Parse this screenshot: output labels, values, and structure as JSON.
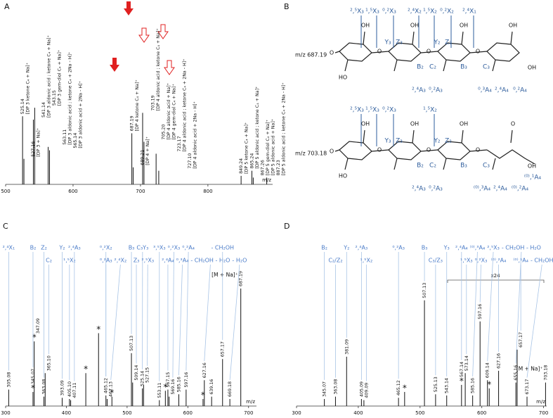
{
  "chart_data": [
    {
      "panel": "A",
      "type": "stem",
      "xlabel": "m/z",
      "xlim": [
        500,
        896
      ],
      "xticks": [
        500,
        600,
        700,
        800
      ],
      "ylim": [
        0,
        100
      ],
      "color": "#111111",
      "x": [
        525.14,
        527.16,
        541.14,
        543.15,
        563.11,
        565.14,
        687.19,
        689.21,
        703.19,
        705.2,
        723.17,
        727.1,
        849.24,
        865.24,
        867.26,
        887.23
      ],
      "x_labels": [
        "525.14",
        "527.16",
        "541.14",
        "543.15",
        "563.11",
        "565.14",
        "687.19",
        "689.21",
        "703.19",
        "705.20",
        "723.17",
        "727.10",
        "849.24",
        "865.24",
        "867.26",
        "887.23"
      ],
      "values": [
        40,
        15,
        38,
        45,
        22,
        20,
        30,
        10,
        42,
        25,
        18,
        8,
        5,
        8,
        4,
        4
      ],
      "ion_labels": [
        [
          "[DP 3 ketone C₄ + Na]⁺"
        ],
        [
          "[DP 3 + Na]⁺"
        ],
        [
          "[DP 3 aldonic acid ; ketone C₄ + Na]⁺"
        ],
        [
          "[DP 3 gem-diol C₄ + Na]⁺"
        ],
        [
          "[DP 3 aldonic acid ; ketone C₄ + 2Na - H]⁺"
        ],
        [
          "[DP 3 aldonic acid + 2Na - H]⁺"
        ],
        [
          "[DP 4 ketone C₄ + Na]⁺"
        ],
        [
          "[DP 4 + Na]⁺"
        ],
        [
          "[DP 4 aldonic acid ; ketone C₄ + Na]⁺"
        ],
        [
          "[DP 4 aldonic acid + Na]⁺",
          "[DP 4 gem-diol C₄ + Na]⁺"
        ],
        [
          "[DP 4 aldonic acid ; ketone C₄ + 2Na - H]⁺"
        ],
        [
          "[DP 4 aldonic acid + 2Na - H]⁺"
        ],
        [
          "[DP 5 ketone C₄ + Na]⁺"
        ],
        [
          "[DP 5 aldonic acid ; ketone C₄ + Na]⁺"
        ],
        [
          "[DP 5 gem-diol C₄ + Na]⁺",
          "[DP 5 aldonic acid + Na]⁺"
        ],
        [
          "[DP 5 aldonic acid ; ketone C₄ + 2Na - H]⁺"
        ]
      ]
    },
    {
      "panel": "C",
      "type": "stem",
      "xlabel": "m/z",
      "xlim": [
        300,
        713
      ],
      "xticks": [
        300,
        400,
        500,
        600,
        700
      ],
      "ylim": [
        0,
        100
      ],
      "color": "#111111",
      "x": [
        305.08,
        345.07,
        347.09,
        363.08,
        365.1,
        393.09,
        405.1,
        407.11,
        432,
        453,
        465.12,
        467.13,
        475,
        507.13,
        509.14,
        525.14,
        527.15,
        553.11,
        563,
        567.15,
        569.16,
        585.16,
        597.16,
        625,
        627.16,
        639.16,
        657.17,
        669.18,
        687.19
      ],
      "x_labels": [
        "305.08",
        "345.07",
        "347.09",
        "363.08",
        "365.10",
        "393.09",
        "405.10",
        "407.11",
        null,
        null,
        "465.12",
        "467.13",
        null,
        "507.13",
        "509.14",
        "525.14",
        "527.15",
        "553.11",
        null,
        "567.15",
        "569.16",
        "585.16",
        "597.16",
        null,
        "627.16",
        "639.16",
        "657.17",
        "669.18",
        "687.19"
      ],
      "values": [
        14,
        12,
        55,
        8,
        28,
        7,
        6,
        5,
        28,
        62,
        9,
        6,
        8,
        45,
        20,
        15,
        18,
        5,
        13,
        14,
        8,
        10,
        14,
        6,
        22,
        8,
        40,
        6,
        100
      ],
      "stars": [
        null,
        "*",
        "*",
        null,
        null,
        null,
        null,
        null,
        "*",
        "*",
        null,
        null,
        "*",
        null,
        null,
        null,
        null,
        null,
        "*",
        null,
        null,
        null,
        null,
        "*",
        null,
        null,
        null,
        null,
        null
      ],
      "fragments": [
        [
          "²,⁴X₁"
        ],
        [
          "B₂"
        ],
        null,
        [
          "Z₂"
        ],
        [
          "C₂"
        ],
        [
          "Y₂"
        ],
        [
          "¹,⁵X₂"
        ],
        [
          "²,⁴A₃"
        ],
        null,
        null,
        [
          "⁰,²X₂",
          "⁰,²A₃"
        ],
        [
          "²,⁴X₂"
        ],
        null,
        [
          "B₃"
        ],
        [
          "Z₃"
        ],
        [
          "C₃Y₃"
        ],
        [
          "²,⁵X₃"
        ],
        [
          "³,⁵X₃"
        ],
        null,
        [
          "²,⁴A₄"
        ],
        [
          "⁰,²X₃"
        ],
        [
          "⁰,³A₄"
        ],
        [
          "⁰,²A₄"
        ],
        null,
        [
          "- CH₂OH - H₂O"
        ],
        null,
        [
          "- CH₂OH"
        ],
        [
          "- H₂O"
        ],
        null
      ],
      "ion_labels": [
        null,
        null,
        null,
        null,
        null,
        null,
        null,
        null,
        null,
        null,
        null,
        null,
        null,
        null,
        null,
        null,
        null,
        null,
        null,
        null,
        null,
        null,
        null,
        null,
        null,
        null,
        null,
        null,
        [
          "[M + Na]⁺"
        ]
      ]
    },
    {
      "panel": "D",
      "type": "stem",
      "xlabel": "m/z",
      "xlim": [
        300,
        705
      ],
      "xticks": [
        300,
        400,
        500,
        600,
        700
      ],
      "ylim": [
        0,
        100
      ],
      "color": "#111111",
      "zoom_label": "x24",
      "x": [
        345.07,
        363.08,
        381.09,
        405.09,
        409.09,
        465.12,
        475,
        507.13,
        525.13,
        543.14,
        567.14,
        573.14,
        585.16,
        597.16,
        609.14,
        612,
        627.16,
        655.16,
        657.17,
        673.17,
        703.18
      ],
      "x_labels": [
        "345.07",
        "363.08",
        "381.09",
        "405.09",
        "409.09",
        "465.12",
        null,
        "507.13",
        "525.13",
        "543.14",
        "567.14",
        "573.14",
        "585.16",
        "597.16",
        "609.14",
        null,
        "627.16",
        "655.16",
        "657.17",
        "673.17",
        "703.18"
      ],
      "values": [
        6,
        8,
        42,
        6,
        5,
        7,
        12,
        90,
        10,
        9,
        18,
        28,
        9,
        72,
        22,
        15,
        30,
        20,
        48,
        8,
        20
      ],
      "stars": [
        null,
        null,
        null,
        null,
        null,
        null,
        "*",
        null,
        null,
        null,
        "*",
        null,
        null,
        null,
        null,
        "*",
        null,
        null,
        null,
        null,
        null
      ],
      "fragments": [
        [
          "B₂"
        ],
        [
          "C₂/Z₂"
        ],
        [
          "Y₂"
        ],
        [
          "²,⁴A₃"
        ],
        [
          "¹,⁵X₂"
        ],
        [
          "⁰,²A₃"
        ],
        null,
        [
          "B₃"
        ],
        [
          "C₃/Z₃"
        ],
        [
          "Y₃"
        ],
        [
          "²,⁴A₄"
        ],
        [
          "¹,⁵X₃"
        ],
        [
          "⁽⁰⁾,³A₄"
        ],
        [
          "⁰,²X₃"
        ],
        [
          "²,⁵X₃"
        ],
        null,
        [
          "⁽⁰⁾,²A₄"
        ],
        [
          "- CH₂OH - H₂O"
        ],
        [
          "⁽⁰⁾,¹A₄"
        ],
        [
          "- CH₂OH"
        ],
        null
      ],
      "ion_labels": [
        null,
        null,
        null,
        null,
        null,
        null,
        null,
        null,
        null,
        null,
        null,
        null,
        null,
        null,
        null,
        null,
        null,
        null,
        null,
        null,
        [
          "[M + Na]⁺"
        ]
      ]
    }
  ],
  "diagram": {
    "panel": "B",
    "structures": [
      {
        "label": "m/z 687.19",
        "fragments": [
          "²,⁵X₃",
          "¹,⁵X₃",
          "⁰,²X₃",
          "²,⁴X₂",
          "¹,⁵X₂",
          "⁰,²X₂",
          "²,⁴X₁",
          "Y₃",
          "Z₃",
          "Y₂",
          "Z₂",
          "B₂",
          "C₂",
          "B₃",
          "C₃",
          "²,⁴A₃",
          "⁰,²A₃",
          "⁰,³A₄",
          "²,⁴A₄",
          "⁰,²A₄"
        ],
        "atoms": [
          "O",
          "HO",
          "O",
          "O",
          "O",
          "OH",
          "OH",
          "OH",
          "OH",
          "OH"
        ]
      },
      {
        "label": "m/z 703.18",
        "fragments": [
          "²,⁵X₃",
          "¹,⁵X₃",
          "⁰,²X₃",
          "¹,⁵X₂",
          "Y₃",
          "Z₃",
          "Y₂",
          "Z₂",
          "B₂",
          "C₂",
          "B₃",
          "C₃",
          "⁽⁰⁾,¹A₄",
          "²,⁴A₃",
          "⁰,²A₃",
          "⁽⁰⁾,³A₄",
          "²,⁴A₄",
          "⁽⁰⁾,²A₄"
        ],
        "atoms": [
          "O",
          "HO",
          "O",
          "O",
          "O",
          "OH",
          "OH",
          "OH",
          "O",
          "OH"
        ]
      }
    ]
  }
}
